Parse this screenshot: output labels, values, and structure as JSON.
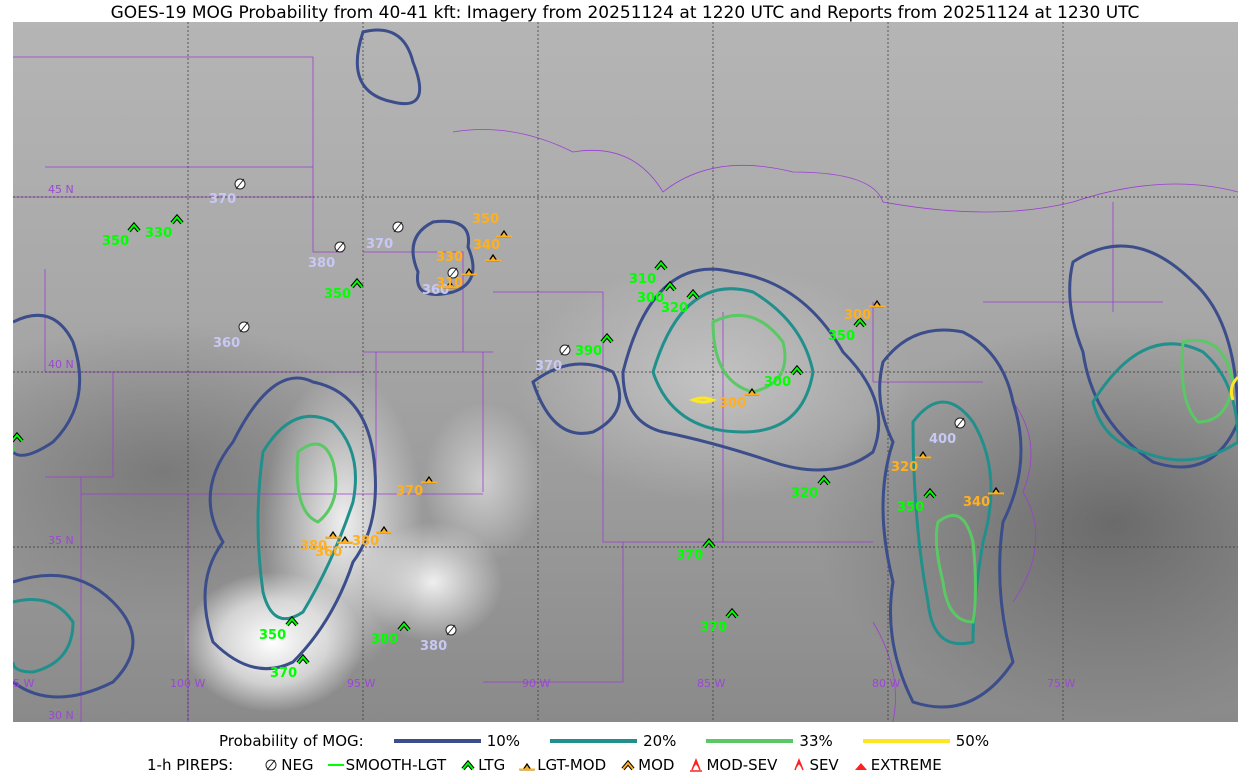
{
  "title": "GOES-19 MOG Probability from 40-41 kft: Imagery from 20251124 at 1220 UTC and Reports from 20251124 at 1230 UTC",
  "grid_labels": {
    "lat": [
      "45 N",
      "40 N",
      "35 N",
      "30 N"
    ],
    "lon": [
      "105 W",
      "100 W",
      "95 W",
      "90 W",
      "85 W",
      "80 W",
      "75 W"
    ]
  },
  "legend": {
    "probability_label": "Probability of MOG:",
    "levels": [
      {
        "label": "10%",
        "color": "#3b4d8a"
      },
      {
        "label": "20%",
        "color": "#21908c"
      },
      {
        "label": "33%",
        "color": "#5ac864"
      },
      {
        "label": "50%",
        "color": "#fde725"
      }
    ],
    "pireps_label": "1-h PIREPS:",
    "pirep_types": [
      {
        "label": "NEG",
        "color": "#c8c8f5",
        "icon": "neg-icon"
      },
      {
        "label": "SMOOTH-LGT",
        "color": "#00ff00",
        "icon": "line-icon"
      },
      {
        "label": "LTG",
        "color": "#00ff00",
        "icon": "chevron-icon"
      },
      {
        "label": "LGT-MOD",
        "color": "#ffb020",
        "icon": "triangle-bar-icon"
      },
      {
        "label": "MOD",
        "color": "#ffb020",
        "icon": "chevron-icon"
      },
      {
        "label": "MOD-SEV",
        "color": "#ff2020",
        "icon": "double-chevron-bar-icon"
      },
      {
        "label": "SEV",
        "color": "#ff2020",
        "icon": "double-chevron-icon"
      },
      {
        "label": "EXTREME",
        "color": "#ff2020",
        "icon": "filled-triangle-icon"
      }
    ]
  },
  "reports": [
    {
      "type": "NEG",
      "alt": "370"
    },
    {
      "type": "NEG",
      "alt": "380"
    },
    {
      "type": "NEG",
      "alt": "370"
    },
    {
      "type": "NEG",
      "alt": "360"
    },
    {
      "type": "NEG",
      "alt": "360"
    },
    {
      "type": "NEG",
      "alt": "370"
    },
    {
      "type": "NEG",
      "alt": "400"
    },
    {
      "type": "NEG",
      "alt": "380"
    },
    {
      "type": "LTG",
      "alt": "350"
    },
    {
      "type": "LTG",
      "alt": "330"
    },
    {
      "type": "LTG",
      "alt": "350"
    },
    {
      "type": "LTG",
      "alt": "310"
    },
    {
      "type": "LTG",
      "alt": "300"
    },
    {
      "type": "LTG",
      "alt": "320"
    },
    {
      "type": "LTG",
      "alt": "390"
    },
    {
      "type": "LTG",
      "alt": "350"
    },
    {
      "type": "LTG",
      "alt": "300"
    },
    {
      "type": "LTG",
      "alt": "320"
    },
    {
      "type": "LTG",
      "alt": "350"
    },
    {
      "type": "LTG",
      "alt": "370"
    },
    {
      "type": "LTG",
      "alt": "370"
    },
    {
      "type": "LTG",
      "alt": "380"
    },
    {
      "type": "LTG",
      "alt": "350"
    },
    {
      "type": "LTG",
      "alt": "370"
    },
    {
      "type": "LTG",
      "alt": "360"
    },
    {
      "type": "LGT-MOD",
      "alt": "350"
    },
    {
      "type": "LGT-MOD",
      "alt": "340"
    },
    {
      "type": "LGT-MOD",
      "alt": "330"
    },
    {
      "type": "LGT-MOD",
      "alt": "310"
    },
    {
      "type": "LGT-MOD",
      "alt": "300"
    },
    {
      "type": "LGT-MOD",
      "alt": "300"
    },
    {
      "type": "LGT-MOD",
      "alt": "320"
    },
    {
      "type": "LGT-MOD",
      "alt": "340"
    },
    {
      "type": "LGT-MOD",
      "alt": "370"
    },
    {
      "type": "LGT-MOD",
      "alt": "380"
    },
    {
      "type": "LGT-MOD",
      "alt": "380"
    },
    {
      "type": "LGT-MOD",
      "alt": "360"
    }
  ]
}
